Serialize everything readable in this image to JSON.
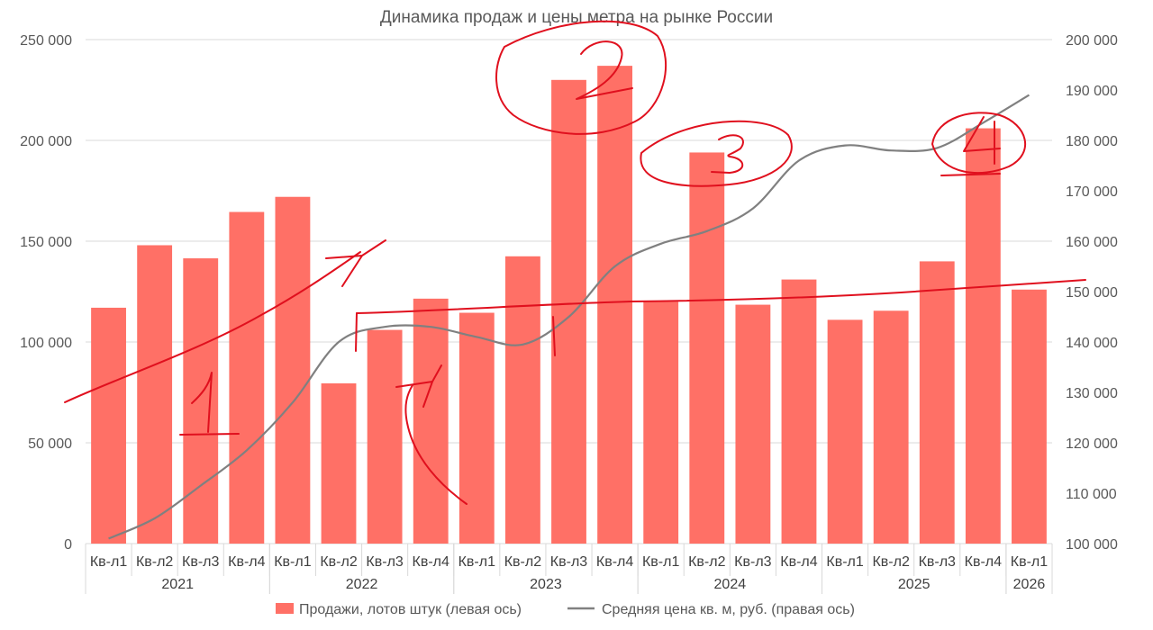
{
  "chart_data": {
    "type": "bar",
    "title": "Динамика продаж и цены метра на рынке России",
    "categories": [
      "Кв-л1",
      "Кв-л2",
      "Кв-л3",
      "Кв-л4",
      "Кв-л1",
      "Кв-л2",
      "Кв-л3",
      "Кв-л4",
      "Кв-л1",
      "Кв-л2",
      "Кв-л3",
      "Кв-л4",
      "Кв-л1",
      "Кв-л2",
      "Кв-л3",
      "Кв-л4",
      "Кв-л1",
      "Кв-л2",
      "Кв-л3",
      "Кв-л4",
      "Кв-л1"
    ],
    "years": [
      {
        "label": "2021",
        "start": 0,
        "end": 3
      },
      {
        "label": "2022",
        "start": 4,
        "end": 7
      },
      {
        "label": "2023",
        "start": 8,
        "end": 11
      },
      {
        "label": "2024",
        "start": 12,
        "end": 15
      },
      {
        "label": "2025",
        "start": 16,
        "end": 19
      },
      {
        "label": "2026",
        "start": 20,
        "end": 20
      }
    ],
    "series": [
      {
        "name": "Продажи, лотов штук (левая ось)",
        "type": "bar",
        "axis": "left",
        "color": "#ff7066",
        "values": [
          117000,
          148000,
          141500,
          164500,
          172000,
          79500,
          106000,
          121500,
          114500,
          142500,
          230000,
          237000,
          120000,
          194000,
          118500,
          131000,
          111000,
          115500,
          140000,
          206000,
          126000
        ]
      },
      {
        "name": "Средняя цена кв. м, руб. (правая ось)",
        "type": "line",
        "axis": "right",
        "color": "#808080",
        "values": [
          101000,
          105000,
          111500,
          118500,
          128000,
          140000,
          143000,
          143000,
          141000,
          139500,
          145000,
          155000,
          159500,
          162000,
          166500,
          176000,
          179000,
          178000,
          178500,
          183500,
          189000
        ]
      }
    ],
    "left_axis": {
      "min": 0,
      "max": 250000,
      "ticks": [
        "0",
        "50 000",
        "100 000",
        "150 000",
        "200 000",
        "250 000"
      ]
    },
    "right_axis": {
      "min": 100000,
      "max": 200000,
      "ticks": [
        "100 000",
        "110 000",
        "120 000",
        "130 000",
        "140 000",
        "150 000",
        "160 000",
        "170 000",
        "180 000",
        "190 000",
        "200 000"
      ]
    },
    "grid": true,
    "legend_position": "bottom",
    "annotations": [
      "1",
      "1",
      "2",
      "3",
      "4"
    ]
  }
}
